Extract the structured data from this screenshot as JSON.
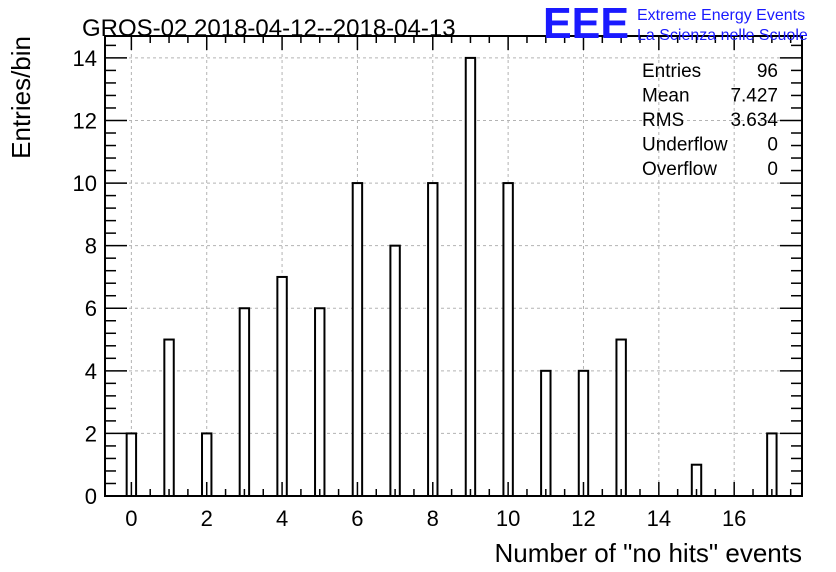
{
  "chart_data": {
    "type": "bar",
    "title": "GROS-02 2018-04-12--2018-04-13",
    "xlabel": "Number of \"no hits\" events",
    "ylabel": "Entries/bin",
    "xlim": [
      -0.7,
      17.8
    ],
    "ylim": [
      0,
      14.7
    ],
    "x_ticks": [
      0,
      2,
      4,
      6,
      8,
      10,
      12,
      14,
      16
    ],
    "y_ticks": [
      0,
      2,
      4,
      6,
      8,
      10,
      12,
      14
    ],
    "grid": true,
    "bin_width": 0.25,
    "x": [
      0,
      1,
      2,
      3,
      4,
      5,
      6,
      7,
      8,
      9,
      10,
      11,
      12,
      13,
      14,
      15,
      16,
      17
    ],
    "values": [
      2,
      5,
      2,
      6,
      7,
      6,
      10,
      8,
      10,
      14,
      10,
      4,
      4,
      5,
      0,
      1,
      0,
      2
    ],
    "legend_position": "top-right",
    "bar_fill": "#ffffff",
    "bar_stroke": "#000000",
    "grid_color": "#b3b3b3"
  },
  "stats": [
    {
      "label": "Entries",
      "value": "96"
    },
    {
      "label": "Mean",
      "value": "7.427"
    },
    {
      "label": "RMS",
      "value": "3.634"
    },
    {
      "label": "Underflow",
      "value": "0"
    },
    {
      "label": "Overflow",
      "value": "0"
    }
  ],
  "logo": {
    "mark": "EEE",
    "line1": "Extreme Energy Events",
    "line2": "La Scienza nelle Scuole",
    "color": "#1a1aff"
  }
}
